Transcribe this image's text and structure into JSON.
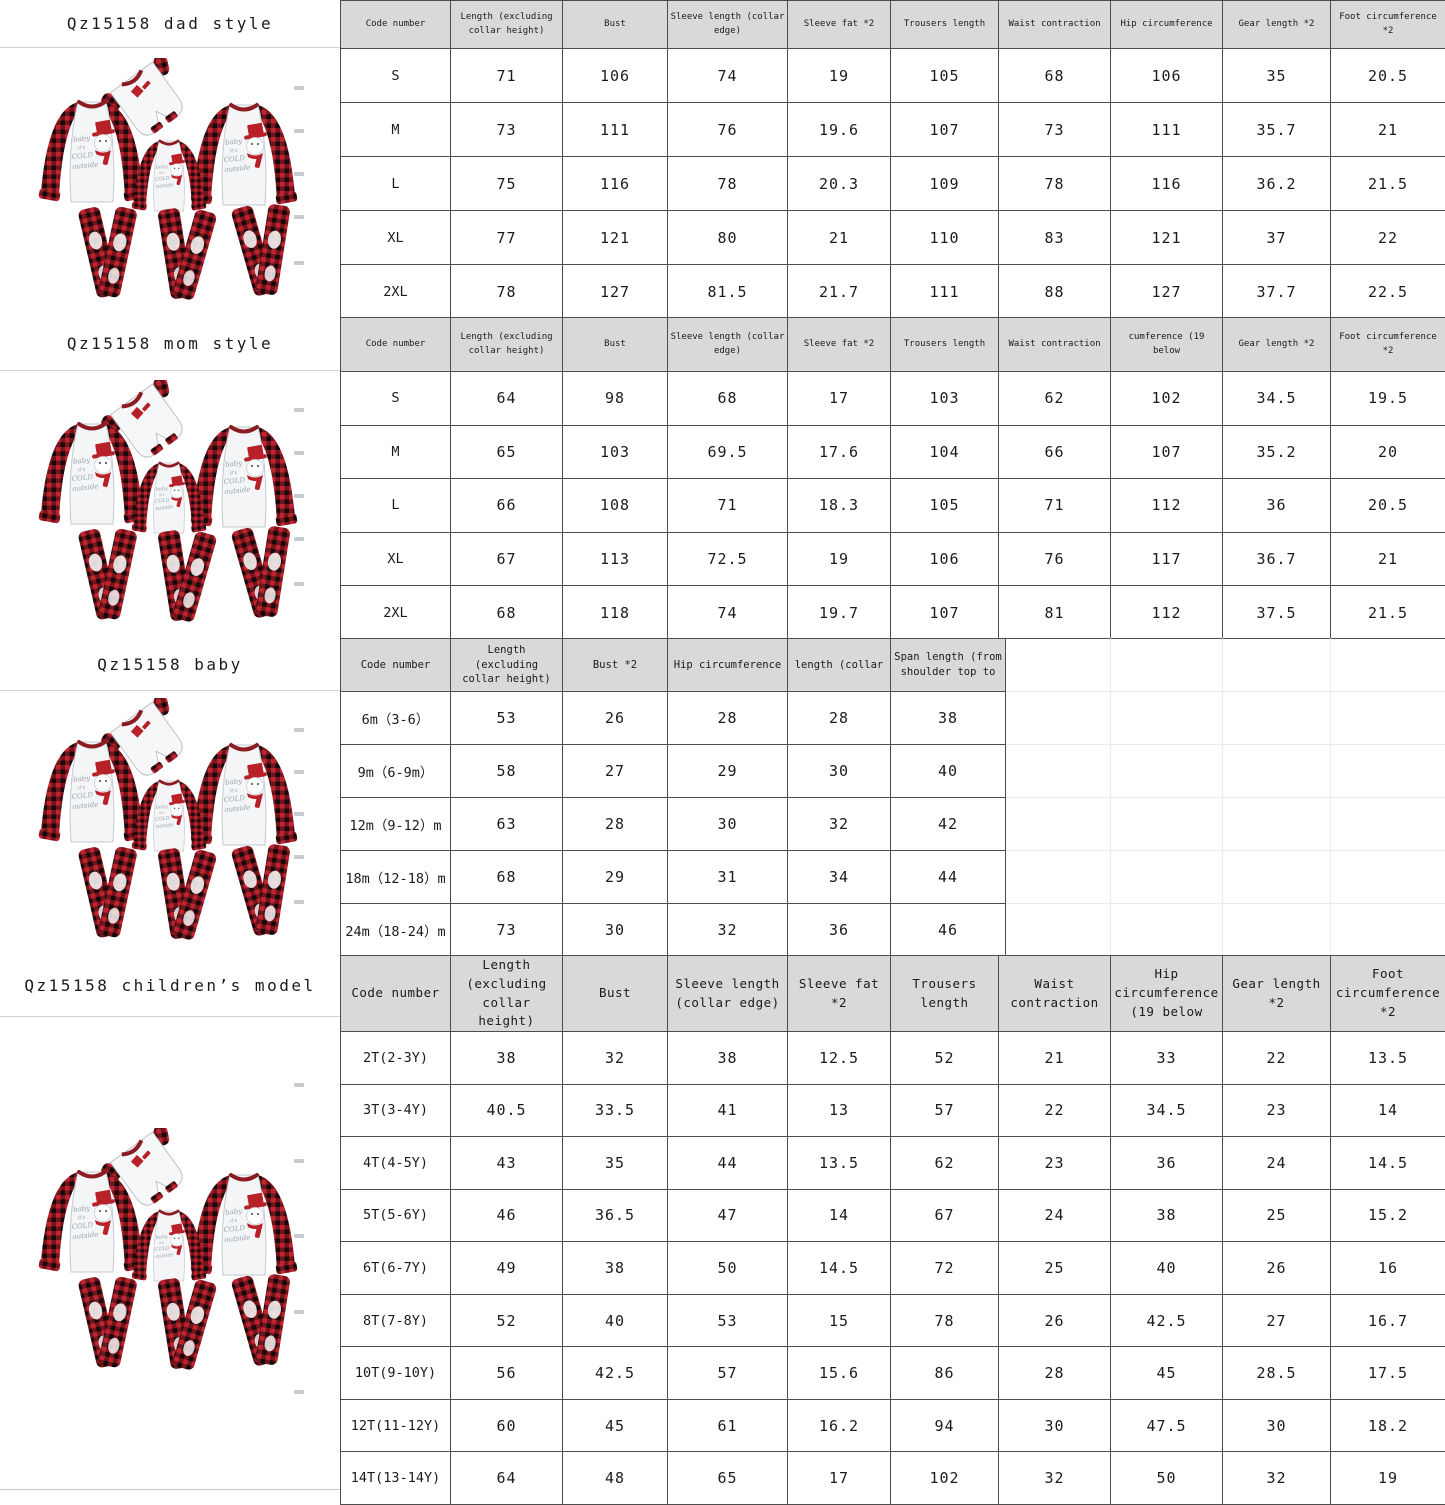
{
  "page_title": "Qz15158 family pajamas size chart",
  "colors": {
    "header_bg": "#d9d9d9",
    "grid_line": "#4d4d4d",
    "light_grid_line": "#ececec",
    "plaid_red": "#bf2430",
    "plaid_dark_red": "#73151b",
    "plaid_black": "#17090b",
    "garment_white": "#f4f5f7",
    "accent_red": "#b92129"
  },
  "product_image": {
    "description": "Flat-lay of family matching pajamas: baby romper, three raglan tops with red buffalo plaid sleeves and snowman print, three plaid pants",
    "graphic_text": "baby it's COLD outside"
  },
  "sections": [
    {
      "id": "dad",
      "title": "Qz15158 dad style",
      "columns": [
        "Code number",
        "Length (excluding collar height)",
        "Bust",
        "Sleeve length (collar edge)",
        "Sleeve fat *2",
        "Trousers length",
        "Waist contraction",
        "Hip circumference",
        "Gear length *2",
        "Foot circumference *2"
      ],
      "rows": [
        [
          "S",
          "71",
          "106",
          "74",
          "19",
          "105",
          "68",
          "106",
          "35",
          "20.5"
        ],
        [
          "M",
          "73",
          "111",
          "76",
          "19.6",
          "107",
          "73",
          "111",
          "35.7",
          "21"
        ],
        [
          "L",
          "75",
          "116",
          "78",
          "20.3",
          "109",
          "78",
          "116",
          "36.2",
          "21.5"
        ],
        [
          "XL",
          "77",
          "121",
          "80",
          "21",
          "110",
          "83",
          "121",
          "37",
          "22"
        ],
        [
          "2XL",
          "78",
          "127",
          "81.5",
          "21.7",
          "111",
          "88",
          "127",
          "37.7",
          "22.5"
        ]
      ]
    },
    {
      "id": "mom",
      "title": "Qz15158 mom style",
      "columns": [
        "Code number",
        "Length (excluding collar height)",
        "Bust",
        "Sleeve length (collar edge)",
        "Sleeve fat *2",
        "Trousers length",
        "Waist contraction",
        "cumference (19 below",
        "Gear length *2",
        "Foot circumference *2"
      ],
      "rows": [
        [
          "S",
          "64",
          "98",
          "68",
          "17",
          "103",
          "62",
          "102",
          "34.5",
          "19.5"
        ],
        [
          "M",
          "65",
          "103",
          "69.5",
          "17.6",
          "104",
          "66",
          "107",
          "35.2",
          "20"
        ],
        [
          "L",
          "66",
          "108",
          "71",
          "18.3",
          "105",
          "71",
          "112",
          "36",
          "20.5"
        ],
        [
          "XL",
          "67",
          "113",
          "72.5",
          "19",
          "106",
          "76",
          "117",
          "36.7",
          "21"
        ],
        [
          "2XL",
          "68",
          "118",
          "74",
          "19.7",
          "107",
          "81",
          "112",
          "37.5",
          "21.5"
        ]
      ]
    },
    {
      "id": "baby",
      "title": "Qz15158 baby",
      "columns": [
        "Code number",
        "Length (excluding collar height)",
        "Bust *2",
        "Hip circumference",
        "length (collar",
        "Span length (from shoulder top to"
      ],
      "empty_trailing_columns": 4,
      "rows": [
        [
          "6m（3-6）",
          "53",
          "26",
          "28",
          "28",
          "38"
        ],
        [
          "9m（6-9m）",
          "58",
          "27",
          "29",
          "30",
          "40"
        ],
        [
          "12m（9-12）m",
          "63",
          "28",
          "30",
          "32",
          "42"
        ],
        [
          "18m（12-18）m",
          "68",
          "29",
          "31",
          "34",
          "44"
        ],
        [
          "24m（18-24）m",
          "73",
          "30",
          "32",
          "36",
          "46"
        ]
      ]
    },
    {
      "id": "children",
      "title": "Qz15158 children’s model",
      "columns": [
        "Code number",
        "Length (excluding collar height)",
        "Bust",
        "Sleeve length (collar edge)",
        "Sleeve fat *2",
        "Trousers length",
        "Waist contraction",
        "Hip circumference (19 below",
        "Gear length *2",
        "Foot circumference *2"
      ],
      "rows": [
        [
          "2T(2-3Y)",
          "38",
          "32",
          "38",
          "12.5",
          "52",
          "21",
          "33",
          "22",
          "13.5"
        ],
        [
          "3T(3-4Y)",
          "40.5",
          "33.5",
          "41",
          "13",
          "57",
          "22",
          "34.5",
          "23",
          "14"
        ],
        [
          "4T(4-5Y)",
          "43",
          "35",
          "44",
          "13.5",
          "62",
          "23",
          "36",
          "24",
          "14.5"
        ],
        [
          "5T(5-6Y)",
          "46",
          "36.5",
          "47",
          "14",
          "67",
          "24",
          "38",
          "25",
          "15.2"
        ],
        [
          "6T(6-7Y)",
          "49",
          "38",
          "50",
          "14.5",
          "72",
          "25",
          "40",
          "26",
          "16"
        ],
        [
          "8T(7-8Y)",
          "52",
          "40",
          "53",
          "15",
          "78",
          "26",
          "42.5",
          "27",
          "16.7"
        ],
        [
          "10T(9-10Y)",
          "56",
          "42.5",
          "57",
          "15.6",
          "86",
          "28",
          "45",
          "28.5",
          "17.5"
        ],
        [
          "12T(11-12Y)",
          "60",
          "45",
          "61",
          "16.2",
          "94",
          "30",
          "47.5",
          "30",
          "18.2"
        ],
        [
          "14T(13-14Y)",
          "64",
          "48",
          "65",
          "17",
          "102",
          "32",
          "50",
          "32",
          "19"
        ]
      ]
    }
  ]
}
